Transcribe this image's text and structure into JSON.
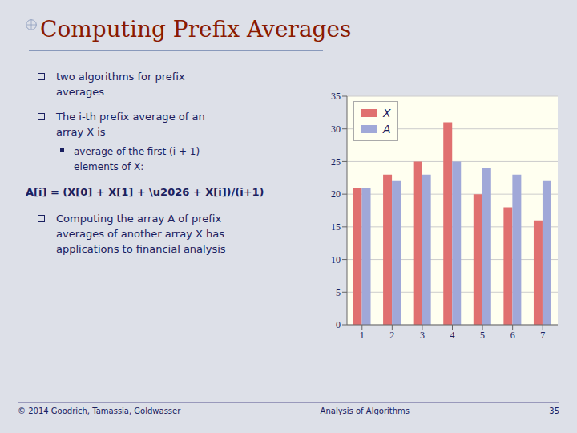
{
  "chart_data": {
    "type": "bar",
    "title": "Computing Prefix Averages",
    "categories": [
      "1",
      "2",
      "3",
      "4",
      "5",
      "6",
      "7"
    ],
    "series": [
      {
        "name": "X",
        "color": "#e07070",
        "values": [
          21,
          23,
          25,
          31,
          20,
          18,
          16
        ]
      },
      {
        "name": "A",
        "color": "#a0a8d8",
        "values": [
          21,
          22,
          23,
          25,
          24,
          23,
          22
        ]
      }
    ],
    "ylim": [
      0,
      35
    ],
    "yticks": [
      0,
      5,
      10,
      15,
      20,
      25,
      30,
      35
    ],
    "grid": true,
    "legend": "upper left",
    "annotations": [
      "two algorithms for prefix averages",
      "The i-th prefix average of an array X is",
      "average of the first (i + 1) elements of X:",
      "A[i] = (X[0] + X[1] + \\u2026 + X[i])/(i+1)",
      "Computing the array A of prefix averages of another array X has applications to financial analysis",
      "© 2014 Goodrich, Tamassia, Goldwasser",
      "Analysis of Algorithms",
      "35"
    ]
  }
}
